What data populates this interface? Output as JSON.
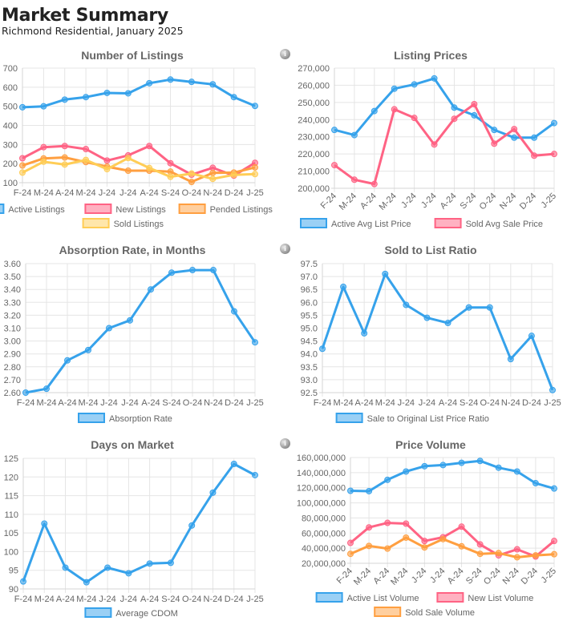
{
  "header": {
    "title": "Market Summary",
    "subtitle": "Richmond Residential, January 2025"
  },
  "icons": {
    "info": "info-icon"
  },
  "info_glyph": "i",
  "colors": {
    "blue": "#36a2eb",
    "pink": "#ff6384",
    "orange": "#ff9f40",
    "yellow": "#ffcd56"
  },
  "chart_data": [
    {
      "id": "listings",
      "type": "line",
      "title": "Number of Listings",
      "categories": [
        "F-24",
        "M-24",
        "A-24",
        "M-24",
        "J-24",
        "J-24",
        "A-24",
        "S-24",
        "O-24",
        "N-24",
        "D-24",
        "J-25"
      ],
      "ylim": [
        100,
        700
      ],
      "yticks": [
        100,
        200,
        300,
        400,
        500,
        600,
        700
      ],
      "ytick_labels": [
        "100",
        "200",
        "300",
        "400",
        "500",
        "600",
        "700"
      ],
      "xlabel": "",
      "ylabel": "",
      "grid": true,
      "legend": "bottom",
      "series": [
        {
          "name": "Active Listings",
          "color": "#36a2eb",
          "values": [
            495,
            500,
            535,
            548,
            570,
            568,
            621,
            640,
            628,
            615,
            548,
            502
          ]
        },
        {
          "name": "New Listings",
          "color": "#ff6384",
          "values": [
            228,
            286,
            292,
            276,
            216,
            243,
            292,
            202,
            142,
            178,
            137,
            204
          ]
        },
        {
          "name": "Pended Listings",
          "color": "#ff9f40",
          "values": [
            190,
            227,
            232,
            208,
            184,
            163,
            163,
            158,
            104,
            151,
            153,
            180
          ]
        },
        {
          "name": "Sold Listings",
          "color": "#ffcd56",
          "values": [
            153,
            210,
            195,
            219,
            171,
            229,
            177,
            131,
            148,
            120,
            141,
            145
          ]
        }
      ]
    },
    {
      "id": "prices",
      "type": "line",
      "title": "Listing Prices",
      "categories": [
        "F-24",
        "M-24",
        "A-24",
        "M-24",
        "J-24",
        "J-24",
        "A-24",
        "S-24",
        "O-24",
        "N-24",
        "D-24",
        "J-25"
      ],
      "ylim": [
        200000,
        270000
      ],
      "yticks": [
        200000,
        210000,
        220000,
        230000,
        240000,
        250000,
        260000,
        270000
      ],
      "ytick_labels": [
        "200,000",
        "210,000",
        "220,000",
        "230,000",
        "240,000",
        "250,000",
        "260,000",
        "270,000"
      ],
      "xlabel": "",
      "ylabel": "",
      "grid": true,
      "legend": "bottom",
      "rotated_x_labels": true,
      "series": [
        {
          "name": "Active Avg List Price",
          "color": "#36a2eb",
          "values": [
            234000,
            231000,
            245000,
            258000,
            260500,
            264000,
            247000,
            242500,
            234000,
            229500,
            229500,
            238000
          ]
        },
        {
          "name": "Sold Avg Sale Price",
          "color": "#ff6384",
          "values": [
            213500,
            205000,
            202500,
            246000,
            241000,
            225500,
            240500,
            249000,
            226000,
            234500,
            219000,
            220000
          ]
        }
      ]
    },
    {
      "id": "absorption",
      "type": "line",
      "title": "Absorption Rate, in Months",
      "categories": [
        "F-24",
        "M-24",
        "A-24",
        "M-24",
        "J-24",
        "J-24",
        "A-24",
        "S-24",
        "O-24",
        "N-24",
        "D-24",
        "J-25"
      ],
      "ylim": [
        2.6,
        3.6
      ],
      "yticks": [
        2.6,
        2.7,
        2.8,
        2.9,
        3.0,
        3.1,
        3.2,
        3.3,
        3.4,
        3.5,
        3.6
      ],
      "ytick_labels": [
        "2.60",
        "2.70",
        "2.80",
        "2.90",
        "3.00",
        "3.10",
        "3.20",
        "3.30",
        "3.40",
        "3.50",
        "3.60"
      ],
      "xlabel": "",
      "ylabel": "",
      "grid": true,
      "legend": "bottom",
      "series": [
        {
          "name": "Absorption Rate",
          "color": "#36a2eb",
          "values": [
            2.6,
            2.63,
            2.85,
            2.93,
            3.1,
            3.16,
            3.4,
            3.53,
            3.55,
            3.55,
            3.23,
            2.99
          ]
        }
      ]
    },
    {
      "id": "ratio",
      "type": "line",
      "title": "Sold to List Ratio",
      "categories": [
        "F-24",
        "M-24",
        "A-24",
        "M-24",
        "J-24",
        "J-24",
        "A-24",
        "S-24",
        "O-24",
        "N-24",
        "D-24",
        "J-25"
      ],
      "ylim": [
        92.5,
        97.5
      ],
      "yticks": [
        92.5,
        93.0,
        93.5,
        94.0,
        94.5,
        95.0,
        95.5,
        96.0,
        96.5,
        97.0,
        97.5
      ],
      "ytick_labels": [
        "92.5",
        "93.0",
        "93.5",
        "94.0",
        "94.5",
        "95.0",
        "95.5",
        "96.0",
        "96.5",
        "97.0",
        "97.5"
      ],
      "xlabel": "",
      "ylabel": "",
      "grid": true,
      "legend": "bottom",
      "series": [
        {
          "name": "Sale to Original List Price Ratio",
          "color": "#36a2eb",
          "values": [
            94.2,
            96.6,
            94.8,
            97.1,
            95.9,
            95.4,
            95.2,
            95.8,
            95.8,
            93.8,
            94.7,
            92.6
          ]
        }
      ]
    },
    {
      "id": "dom",
      "type": "line",
      "title": "Days on Market",
      "categories": [
        "F-24",
        "M-24",
        "A-24",
        "M-24",
        "J-24",
        "J-24",
        "A-24",
        "S-24",
        "O-24",
        "N-24",
        "D-24",
        "J-25"
      ],
      "ylim": [
        90,
        125
      ],
      "yticks": [
        90,
        95,
        100,
        105,
        110,
        115,
        120,
        125
      ],
      "ytick_labels": [
        "90",
        "95",
        "100",
        "105",
        "110",
        "115",
        "120",
        "125"
      ],
      "xlabel": "",
      "ylabel": "",
      "grid": true,
      "legend": "bottom",
      "series": [
        {
          "name": "Average CDOM",
          "color": "#36a2eb",
          "values": [
            92.0,
            107.5,
            95.7,
            91.8,
            95.7,
            94.2,
            96.8,
            97.0,
            107.0,
            115.8,
            123.5,
            120.5
          ]
        }
      ]
    },
    {
      "id": "volume",
      "type": "line",
      "title": "Price Volume",
      "categories": [
        "F-24",
        "M-24",
        "A-24",
        "M-24",
        "J-24",
        "J-24",
        "A-24",
        "S-24",
        "O-24",
        "N-24",
        "D-24",
        "J-25"
      ],
      "ylim": [
        20000000,
        160000000
      ],
      "yticks": [
        20000000,
        40000000,
        60000000,
        80000000,
        100000000,
        120000000,
        140000000,
        160000000
      ],
      "ytick_labels": [
        "20,000,000",
        "40,000,000",
        "60,000,000",
        "80,000,000",
        "100,000,000",
        "120,000,000",
        "140,000,000",
        "160,000,000"
      ],
      "xlabel": "",
      "ylabel": "",
      "grid": true,
      "legend": "bottom",
      "rotated_x_labels": true,
      "series": [
        {
          "name": "Active List Volume",
          "color": "#36a2eb",
          "values": [
            116000000,
            115500000,
            130500000,
            141500000,
            148500000,
            150000000,
            153000000,
            155500000,
            146500000,
            141500000,
            126000000,
            119000000
          ]
        },
        {
          "name": "New List Volume",
          "color": "#ff6384",
          "values": [
            47000000,
            67500000,
            73500000,
            72500000,
            49500000,
            54500000,
            68500000,
            45000000,
            30500000,
            38500000,
            29000000,
            49500000
          ]
        },
        {
          "name": "Sold Sale Volume",
          "color": "#ff9f40",
          "values": [
            32500000,
            43000000,
            39500000,
            54000000,
            41000000,
            52000000,
            42500000,
            32500000,
            33500000,
            28000000,
            30500000,
            32000000
          ]
        }
      ]
    }
  ]
}
